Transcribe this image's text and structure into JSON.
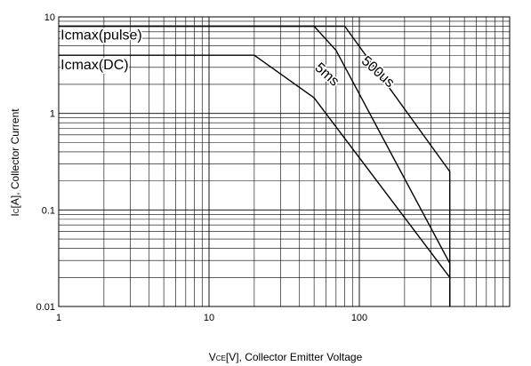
{
  "chart_data": {
    "type": "line",
    "xscale": "log",
    "yscale": "log",
    "xlim": [
      1,
      1000
    ],
    "ylim": [
      0.01,
      10
    ],
    "grid": true,
    "xlabel": {
      "main": "V",
      "sub": "CE",
      "rest": "[V], Collector Emitter Voltage"
    },
    "ylabel": {
      "main": "I",
      "sub": "C",
      "rest": "[A], Collector Current"
    },
    "x_ticks": [
      {
        "value": 1,
        "label": "1"
      },
      {
        "value": 10,
        "label": "10"
      },
      {
        "value": 100,
        "label": "100"
      }
    ],
    "y_ticks": [
      {
        "value": 0.01,
        "label": "0.01"
      },
      {
        "value": 0.1,
        "label": "0.1"
      },
      {
        "value": 1,
        "label": "1"
      },
      {
        "value": 10,
        "label": "10"
      }
    ],
    "series": [
      {
        "name": "Icmax(DC)",
        "points": [
          [
            1,
            4
          ],
          [
            20,
            4
          ],
          [
            50,
            1.45
          ],
          [
            400,
            0.02
          ],
          [
            400,
            0.01
          ]
        ]
      },
      {
        "name": "5ms",
        "points": [
          [
            1,
            8
          ],
          [
            50,
            8
          ],
          [
            70,
            4.5
          ],
          [
            400,
            0.028
          ],
          [
            400,
            0.01
          ]
        ]
      },
      {
        "name": "500us",
        "points": [
          [
            1,
            8
          ],
          [
            80,
            8
          ],
          [
            400,
            0.25
          ],
          [
            400,
            0.01
          ]
        ]
      }
    ],
    "annotations": [
      {
        "text": "Icmax(pulse)",
        "x": 1.03,
        "y": 5.8,
        "rotate": 0
      },
      {
        "text": "Icmax(DC)",
        "x": 1.03,
        "y": 2.85,
        "rotate": 0
      },
      {
        "text": "5ms",
        "x": 50,
        "y": 2.9,
        "rotate": 42
      },
      {
        "text": "500us",
        "x": 102,
        "y": 3.4,
        "rotate": 42
      }
    ],
    "colors": {
      "line": "#000000",
      "grid": "#000000",
      "background": "#ffffff"
    }
  }
}
